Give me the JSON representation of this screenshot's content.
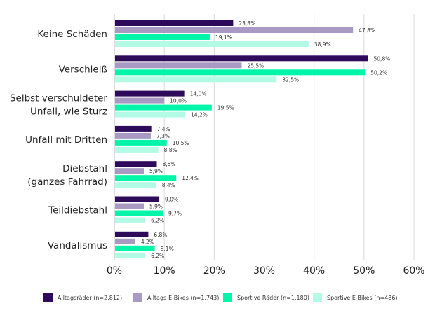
{
  "chart_data": {
    "type": "bar",
    "orientation": "horizontal",
    "categories": [
      [
        "Keine Schäden"
      ],
      [
        "Verschleiß"
      ],
      [
        "Selbst verschuldeter",
        "Unfall, wie Sturz"
      ],
      [
        "Unfall mit Dritten"
      ],
      [
        "Diebstahl",
        "(ganzes Fahrrad)"
      ],
      [
        "Teildiebstahl"
      ],
      [
        "Vandalismus"
      ]
    ],
    "series": [
      {
        "name": "Alltagsräder (n=2.812)",
        "color": "#2d0a5a",
        "values": [
          23.8,
          50.8,
          14.0,
          7.4,
          8.5,
          9.0,
          6.8
        ],
        "labels": [
          "23,8%",
          "50,8%",
          "14,0%",
          "7,4%",
          "8,5%",
          "9,0%",
          "6,8%"
        ]
      },
      {
        "name": "Alltags-E-Bikes (n=1.743)",
        "color": "#a99ac4",
        "values": [
          47.8,
          25.5,
          10.0,
          7.3,
          5.9,
          5.9,
          4.2
        ],
        "labels": [
          "47,8%",
          "25,5%",
          "10,0%",
          "7,3%",
          "5,9%",
          "5,9%",
          "4,2%"
        ]
      },
      {
        "name": "Sportive Räder (n=1.180)",
        "color": "#00f5a8",
        "values": [
          19.1,
          50.2,
          19.5,
          10.5,
          12.4,
          9.7,
          8.1
        ],
        "labels": [
          "19,1%",
          "50,2%",
          "19,5%",
          "10,5%",
          "12,4%",
          "9,7%",
          "8,1%"
        ]
      },
      {
        "name": "Sportive E-Bikes (n=486)",
        "color": "#b3fbe4",
        "values": [
          38.9,
          32.5,
          14.2,
          8.8,
          8.4,
          6.2,
          6.2
        ],
        "labels": [
          "38,9%",
          "32,5%",
          "14,2%",
          "8,8%",
          "8,4%",
          "6,2%",
          "6,2%"
        ]
      }
    ],
    "xlim": [
      0,
      60
    ],
    "xticks": [
      0,
      10,
      20,
      30,
      40,
      50,
      60
    ],
    "xtick_labels": [
      "0%",
      "10%",
      "20%",
      "30%",
      "40%",
      "50%",
      "60%"
    ],
    "grid": true,
    "gridline_color": "#d9d9d9",
    "legend": "bottom"
  }
}
